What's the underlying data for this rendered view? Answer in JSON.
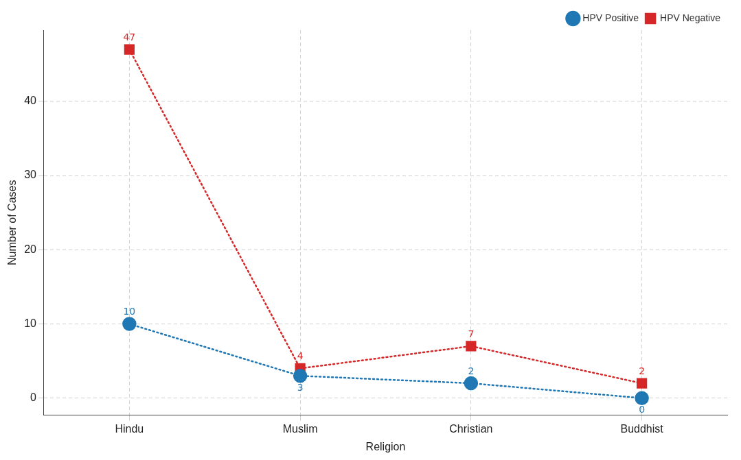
{
  "chart_data": {
    "type": "line",
    "xlabel": "Religion",
    "ylabel": "Number of Cases",
    "categories": [
      "Hindu",
      "Muslim",
      "Christian",
      "Buddhist"
    ],
    "series": [
      {
        "name": "HPV Positive",
        "color": "#1f77b4",
        "marker": "circle",
        "values": [
          10,
          3,
          2,
          0
        ]
      },
      {
        "name": "HPV Negative",
        "color": "#d62728",
        "marker": "square",
        "values": [
          47,
          4,
          7,
          2
        ]
      }
    ],
    "ylim": [
      -2.3,
      49.6
    ],
    "yticks": [
      0,
      10,
      20,
      30,
      40
    ],
    "grid": true,
    "legend": "top right",
    "line_style": "dotted",
    "data_labels": true
  }
}
